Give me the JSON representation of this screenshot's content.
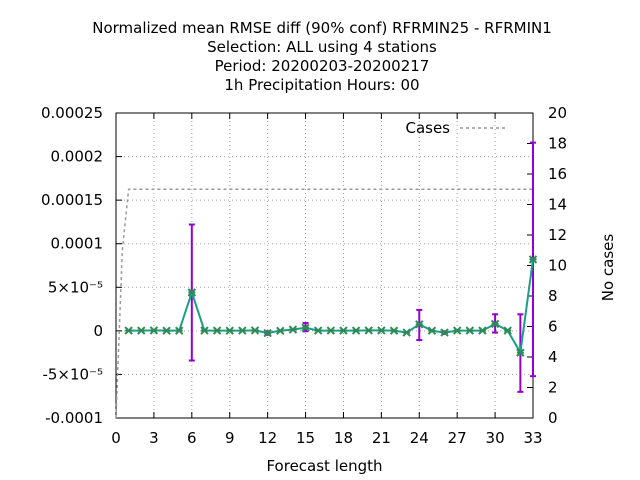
{
  "chart_data": {
    "type": "line",
    "title_lines": [
      "Normalized mean RMSE diff (90% conf) RFRMIN25 - RFRMIN1",
      "Selection: ALL using     4 stations",
      "Period: 20200203-20200217",
      "1h Precipitation   Hours:  00"
    ],
    "xlabel": "Forecast length",
    "y2label": "No cases",
    "xlim": [
      0,
      33
    ],
    "ylim": [
      -0.0001,
      0.00025
    ],
    "y2lim": [
      0,
      20
    ],
    "x_ticks": [
      "0",
      "3",
      "6",
      "9",
      "12",
      "15",
      "18",
      "21",
      "24",
      "27",
      "30",
      "33"
    ],
    "y_tick_values": [
      -0.0001,
      -5e-05,
      0,
      5e-05,
      0.0001,
      0.00015,
      0.0002,
      0.00025
    ],
    "y_tick_labels": [
      "-0.0001",
      "-5×10⁻⁵",
      "0",
      "5×10⁻⁵",
      "0.0001",
      "0.00015",
      "0.0002",
      "0.00025"
    ],
    "y2_tick_labels": [
      "0",
      "2",
      "4",
      "6",
      "8",
      "10",
      "12",
      "14",
      "16",
      "18",
      "20"
    ],
    "grid": true,
    "legend": {
      "placement": "top-right",
      "label": "Cases"
    },
    "colors": {
      "line": "#1a9e8a",
      "marker": "#2e8b57",
      "error": "#9400d3",
      "cases": "#999999"
    },
    "series": [
      {
        "x": [
          1,
          2,
          3,
          4,
          5,
          6,
          7,
          8,
          9,
          10,
          11,
          12,
          13,
          14,
          15,
          16,
          17,
          18,
          19,
          20,
          21,
          22,
          23,
          24,
          25,
          26,
          27,
          28,
          29,
          30,
          31,
          32,
          33
        ],
        "y": [
          3e-07,
          3e-07,
          5e-07,
          2e-07,
          2e-07,
          4.4e-05,
          3e-07,
          3e-07,
          2e-07,
          3e-07,
          5e-07,
          -2.5e-06,
          1e-07,
          1.5e-06,
          3.5e-06,
          3e-07,
          3e-07,
          3e-07,
          3e-07,
          5e-07,
          5e-07,
          2e-07,
          -2e-06,
          7.5e-06,
          2e-07,
          -2e-06,
          3e-07,
          3e-07,
          3e-07,
          8e-06,
          3e-07,
          -2.5e-05,
          8.2e-05
        ],
        "err_low": [
          0,
          0,
          0,
          0,
          0,
          -3.4e-05,
          0,
          0,
          0,
          0,
          0,
          -4.5e-06,
          0,
          0,
          -5e-07,
          0,
          0,
          0,
          0,
          0,
          0,
          0,
          0,
          -1.05e-05,
          0,
          -3.5e-06,
          0,
          0,
          0,
          -2e-06,
          0,
          -7e-05,
          -5.2e-05
        ],
        "err_high": [
          0,
          0,
          0,
          0,
          0,
          0.000122,
          0,
          0,
          0,
          0,
          0,
          -5e-07,
          0,
          0,
          9e-06,
          0,
          0,
          0,
          0,
          0,
          0,
          0,
          0,
          2.4e-05,
          0,
          -5e-07,
          0,
          0,
          0,
          1.9e-05,
          0,
          1.9e-05,
          0.000216
        ]
      }
    ],
    "cases": {
      "x": [
        0,
        0.5,
        1,
        33
      ],
      "y": [
        0,
        11,
        15,
        15
      ]
    }
  }
}
